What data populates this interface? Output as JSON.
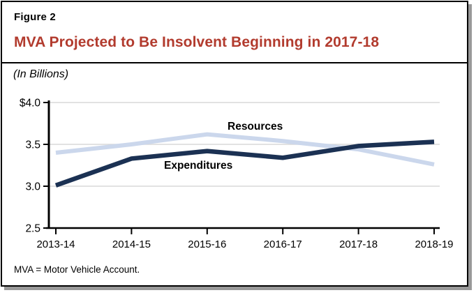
{
  "figure": {
    "label": "Figure 2",
    "title": "MVA Projected to Be Insolvent Beginning in 2017-18",
    "subtitle": "(In Billions)",
    "footnote": "MVA = Motor Vehicle Account."
  },
  "colors": {
    "title_red": "#B23B2E",
    "expenditures_navy": "#1B3153",
    "resources_light_blue": "#CBD7EC",
    "gridline_gray": "#D9D9D9",
    "axis_black": "#000000",
    "shadow_gray": "#999999"
  },
  "chart_data": {
    "type": "line",
    "title": "MVA Projected to Be Insolvent Beginning in 2017-18",
    "units_label": "(In Billions)",
    "categories": [
      "2013-14",
      "2014-15",
      "2015-16",
      "2016-17",
      "2017-18",
      "2018-19"
    ],
    "series": [
      {
        "name": "Resources",
        "color": "#CBD7EC",
        "values": [
          3.4,
          3.5,
          3.62,
          3.54,
          3.44,
          3.26
        ]
      },
      {
        "name": "Expenditures",
        "color": "#1B3153",
        "values": [
          3.01,
          3.33,
          3.42,
          3.34,
          3.48,
          3.53
        ]
      }
    ],
    "ylim": [
      2.5,
      4.0
    ],
    "yticks": [
      2.5,
      3.0,
      3.5,
      4.0
    ],
    "ytick_labels": [
      "2.5",
      "3.0",
      "3.5",
      "$4.0"
    ],
    "xlabel": "",
    "ylabel": "",
    "grid": true,
    "legend_position": "inline-labels"
  }
}
